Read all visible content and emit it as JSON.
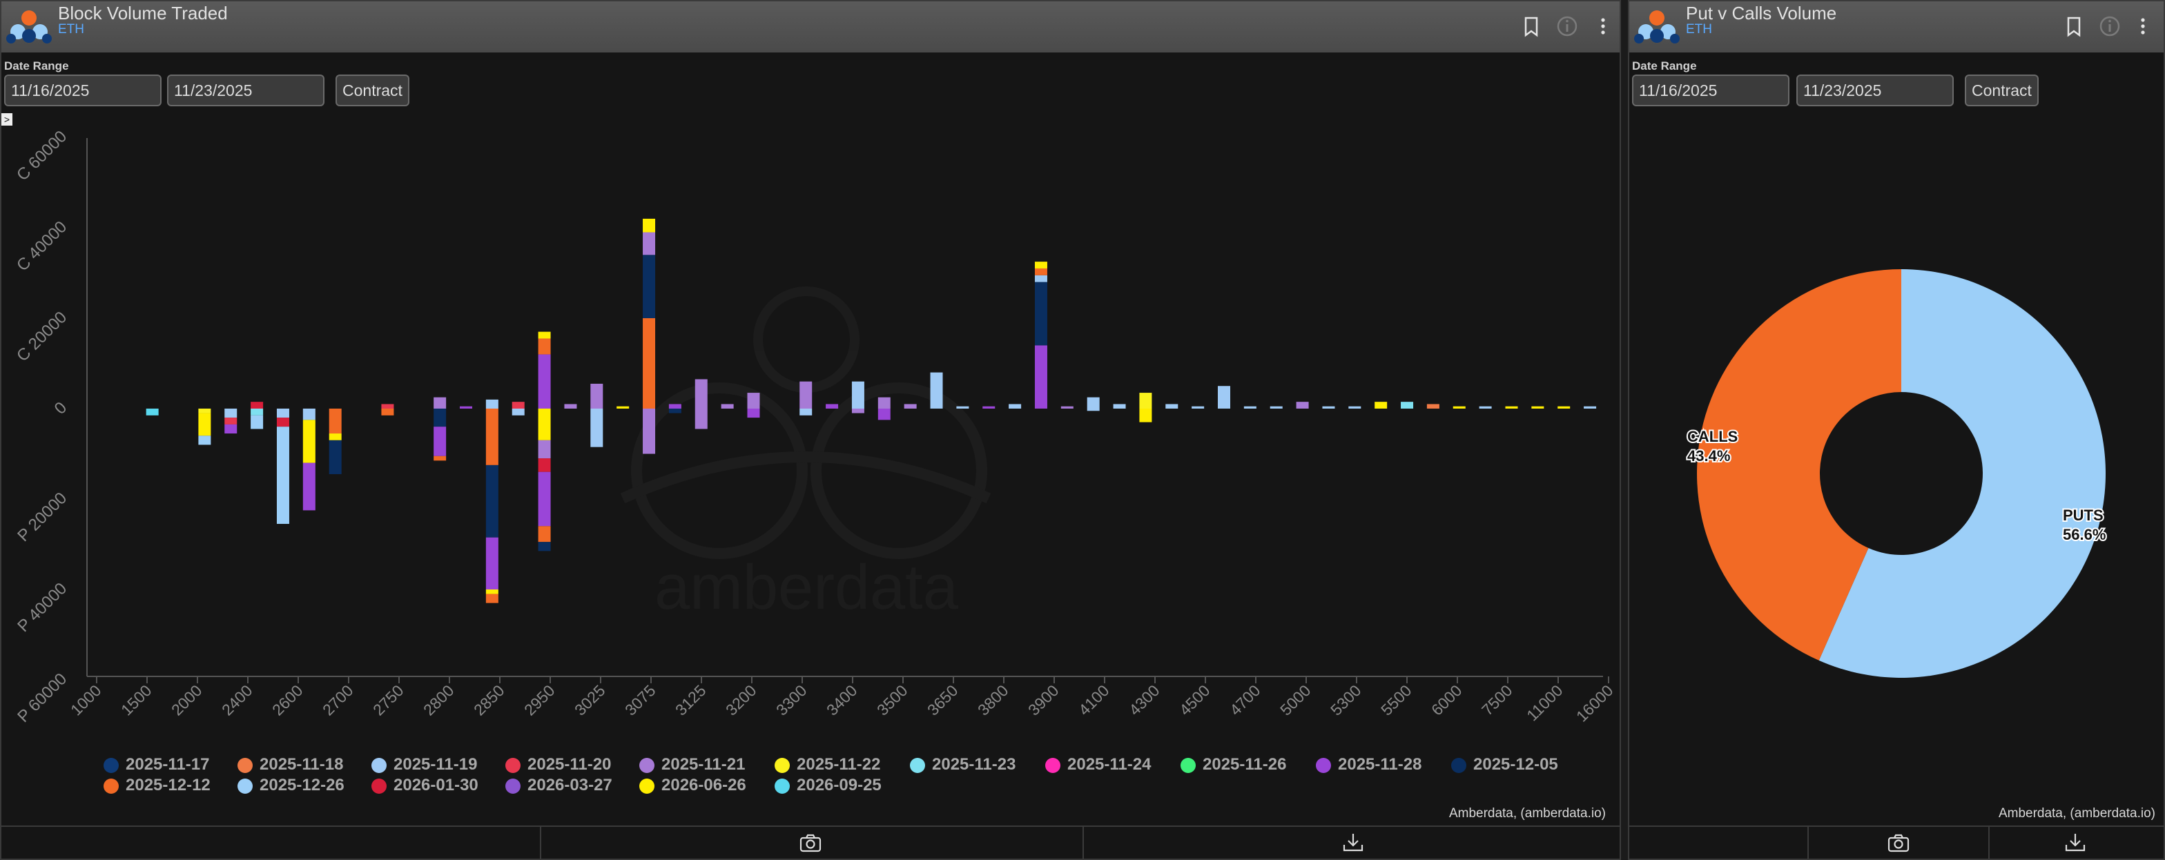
{
  "left_panel": {
    "title": "Block Volume Traded",
    "subtitle": "ETH",
    "date_range_label": "Date Range",
    "start_date": "11/16/2025",
    "end_date": "11/23/2025",
    "contract_button": "Contract",
    "collapse_glyph": ">",
    "credit": "Amberdata, (amberdata.io)",
    "watermark": "amberdata"
  },
  "right_panel": {
    "title": "Put v Calls Volume",
    "subtitle": "ETH",
    "date_range_label": "Date Range",
    "start_date": "11/16/2025",
    "end_date": "11/23/2025",
    "contract_button": "Contract",
    "credit": "Amberdata, (amberdata.io)"
  },
  "icons": {
    "bookmark": "bookmark-icon",
    "info": "info-icon",
    "menu": "kebab-menu-icon",
    "camera": "camera-icon",
    "download": "download-icon"
  },
  "chart_data": [
    {
      "type": "bar",
      "stacked": true,
      "title": "",
      "categories": [
        "1000",
        "1500",
        "2000",
        "2400",
        "2600",
        "2700",
        "2750",
        "2800",
        "2850",
        "2950",
        "3025",
        "3075",
        "3125",
        "3200",
        "3300",
        "3400",
        "3500",
        "3650",
        "3800",
        "3900",
        "4100",
        "4300",
        "4500",
        "4700",
        "5000",
        "5300",
        "5500",
        "6000",
        "7500",
        "11000",
        "16000"
      ],
      "y_ticks": [
        {
          "label": "C 60000",
          "value": 60000
        },
        {
          "label": "C 40000",
          "value": 40000
        },
        {
          "label": "C 20000",
          "value": 20000
        },
        {
          "label": "0",
          "value": 0
        },
        {
          "label": "P 20000",
          "value": -20000
        },
        {
          "label": "P 40000",
          "value": -40000
        },
        {
          "label": "P 60000",
          "value": -60000
        }
      ],
      "ylim": [
        -60000,
        60000
      ],
      "legend_position": "bottom",
      "series_legend": [
        {
          "name": "2025-11-17",
          "color": "#0f3b78"
        },
        {
          "name": "2025-11-18",
          "color": "#f07a45"
        },
        {
          "name": "2025-11-19",
          "color": "#9fcaf5"
        },
        {
          "name": "2025-11-20",
          "color": "#e8384f"
        },
        {
          "name": "2025-11-21",
          "color": "#a77ad6"
        },
        {
          "name": "2025-11-22",
          "color": "#fbf21c"
        },
        {
          "name": "2025-11-23",
          "color": "#7ee0f0"
        },
        {
          "name": "2025-11-24",
          "color": "#ff2bb4"
        },
        {
          "name": "2025-11-26",
          "color": "#3ef07a"
        },
        {
          "name": "2025-11-28",
          "color": "#9a45d8"
        },
        {
          "name": "2025-12-05",
          "color": "#0a2e60"
        },
        {
          "name": "2025-12-12",
          "color": "#f26a25"
        },
        {
          "name": "2025-12-26",
          "color": "#9ccff8"
        },
        {
          "name": "2026-01-30",
          "color": "#d81e3a"
        },
        {
          "name": "2026-03-27",
          "color": "#8b55d0"
        },
        {
          "name": "2026-06-26",
          "color": "#ffee00"
        },
        {
          "name": "2026-09-25",
          "color": "#5ad8ee"
        }
      ],
      "bars": [
        {
          "slot": 2,
          "segments": [
            {
              "series": "2026-09-25",
              "value": -1500
            }
          ]
        },
        {
          "slot": 4,
          "segments": [
            {
              "series": "2025-11-22",
              "value": -1000
            },
            {
              "series": "2026-06-26",
              "value": -5000
            },
            {
              "series": "2025-12-26",
              "value": -2000
            }
          ]
        },
        {
          "slot": 5,
          "segments": [
            {
              "series": "2025-11-19",
              "value": -2000
            },
            {
              "series": "2025-11-20",
              "value": -1500
            },
            {
              "series": "2025-11-28",
              "value": -2000
            }
          ]
        },
        {
          "slot": 6,
          "segments": [
            {
              "series": "2026-01-30",
              "value": 1500
            },
            {
              "series": "2025-11-23",
              "value": -1500
            },
            {
              "series": "2025-12-26",
              "value": -3000
            }
          ]
        },
        {
          "slot": 7,
          "segments": [
            {
              "series": "2025-11-19",
              "value": -2000
            },
            {
              "series": "2026-01-30",
              "value": -2000
            },
            {
              "series": "2025-12-26",
              "value": -21500
            }
          ]
        },
        {
          "slot": 8,
          "segments": [
            {
              "series": "2025-11-19",
              "value": -2500
            },
            {
              "series": "2026-06-26",
              "value": -9500
            },
            {
              "series": "2025-11-28",
              "value": -10500
            }
          ]
        },
        {
          "slot": 9,
          "segments": [
            {
              "series": "2025-12-12",
              "value": -5500
            },
            {
              "series": "2026-06-26",
              "value": -1500
            },
            {
              "series": "2025-12-05",
              "value": -7500
            }
          ]
        },
        {
          "slot": 11,
          "segments": [
            {
              "series": "2025-11-20",
              "value": 1000
            },
            {
              "series": "2025-12-12",
              "value": -1500
            }
          ]
        },
        {
          "slot": 13,
          "segments": [
            {
              "series": "2025-11-21",
              "value": 2500
            },
            {
              "series": "2025-12-05",
              "value": -4000
            },
            {
              "series": "2025-11-28",
              "value": -6500
            },
            {
              "series": "2025-12-12",
              "value": -1000
            }
          ]
        },
        {
          "slot": 14,
          "segments": [
            {
              "series": "2025-11-28",
              "value": 500
            }
          ]
        },
        {
          "slot": 15,
          "segments": [
            {
              "series": "2025-11-19",
              "value": 2000
            },
            {
              "series": "2025-12-12",
              "value": -12500
            },
            {
              "series": "2025-12-05",
              "value": -16000
            },
            {
              "series": "2025-11-28",
              "value": -11500
            },
            {
              "series": "2026-06-26",
              "value": -1000
            },
            {
              "series": "2025-12-12",
              "value": -2000
            }
          ]
        },
        {
          "slot": 16,
          "segments": [
            {
              "series": "2025-11-20",
              "value": 1500
            },
            {
              "series": "2025-11-19",
              "value": -1500
            }
          ]
        },
        {
          "slot": 17,
          "segments": [
            {
              "series": "2025-11-28",
              "value": 12000
            },
            {
              "series": "2025-12-12",
              "value": 3500
            },
            {
              "series": "2026-06-26",
              "value": 1500
            },
            {
              "series": "2026-06-26",
              "value": -7000
            },
            {
              "series": "2025-11-21",
              "value": -4000
            },
            {
              "series": "2026-01-30",
              "value": -3000
            },
            {
              "series": "2025-11-28",
              "value": -12000
            },
            {
              "series": "2025-12-12",
              "value": -3500
            },
            {
              "series": "2025-12-05",
              "value": -2000
            }
          ]
        },
        {
          "slot": 18,
          "segments": [
            {
              "series": "2025-11-21",
              "value": 1000
            }
          ]
        },
        {
          "slot": 19,
          "segments": [
            {
              "series": "2025-11-21",
              "value": 5500
            },
            {
              "series": "2025-11-19",
              "value": -8500
            }
          ]
        },
        {
          "slot": 20,
          "segments": [
            {
              "series": "2026-06-26",
              "value": 500
            }
          ]
        },
        {
          "slot": 21,
          "segments": [
            {
              "series": "2025-12-12",
              "value": 20000
            },
            {
              "series": "2025-12-05",
              "value": 14000
            },
            {
              "series": "2025-11-21",
              "value": 5000
            },
            {
              "series": "2026-06-26",
              "value": 3000
            },
            {
              "series": "2025-11-21",
              "value": -10000
            }
          ]
        },
        {
          "slot": 22,
          "segments": [
            {
              "series": "2025-11-28",
              "value": 1000
            },
            {
              "series": "2025-12-05",
              "value": -1000
            }
          ]
        },
        {
          "slot": 23,
          "segments": [
            {
              "series": "2025-11-21",
              "value": 6500
            },
            {
              "series": "2025-11-21",
              "value": -4500
            }
          ]
        },
        {
          "slot": 24,
          "segments": [
            {
              "series": "2025-11-21",
              "value": 1000
            }
          ]
        },
        {
          "slot": 25,
          "segments": [
            {
              "series": "2025-11-21",
              "value": 3500
            },
            {
              "series": "2025-11-28",
              "value": -2000
            }
          ]
        },
        {
          "slot": 27,
          "segments": [
            {
              "series": "2025-11-21",
              "value": 6000
            },
            {
              "series": "2025-11-19",
              "value": -1500
            }
          ]
        },
        {
          "slot": 28,
          "segments": [
            {
              "series": "2025-11-28",
              "value": 1000
            }
          ]
        },
        {
          "slot": 29,
          "segments": [
            {
              "series": "2025-11-19",
              "value": 6000
            },
            {
              "series": "2025-11-21",
              "value": -1000
            }
          ]
        },
        {
          "slot": 30,
          "segments": [
            {
              "series": "2025-11-21",
              "value": 2500
            },
            {
              "series": "2025-11-28",
              "value": -2500
            }
          ]
        },
        {
          "slot": 31,
          "segments": [
            {
              "series": "2025-11-21",
              "value": 1000
            }
          ]
        },
        {
          "slot": 32,
          "segments": [
            {
              "series": "2025-11-19",
              "value": 8000
            }
          ]
        },
        {
          "slot": 33,
          "segments": [
            {
              "series": "2025-11-19",
              "value": 500
            }
          ]
        },
        {
          "slot": 34,
          "segments": [
            {
              "series": "2025-11-28",
              "value": 500
            }
          ]
        },
        {
          "slot": 35,
          "segments": [
            {
              "series": "2025-11-19",
              "value": 1000
            }
          ]
        },
        {
          "slot": 36,
          "segments": [
            {
              "series": "2025-11-28",
              "value": 14000
            },
            {
              "series": "2025-12-05",
              "value": 14000
            },
            {
              "series": "2025-11-19",
              "value": 1500
            },
            {
              "series": "2025-12-12",
              "value": 1500
            },
            {
              "series": "2026-06-26",
              "value": 1500
            }
          ]
        },
        {
          "slot": 37,
          "segments": [
            {
              "series": "2025-11-21",
              "value": 500
            }
          ]
        },
        {
          "slot": 38,
          "segments": [
            {
              "series": "2025-11-19",
              "value": 2500
            },
            {
              "series": "2025-11-19",
              "value": -500
            }
          ]
        },
        {
          "slot": 39,
          "segments": [
            {
              "series": "2025-11-19",
              "value": 1000
            }
          ]
        },
        {
          "slot": 40,
          "segments": [
            {
              "series": "2025-11-22",
              "value": 3500
            },
            {
              "series": "2026-06-26",
              "value": -3000
            }
          ]
        },
        {
          "slot": 41,
          "segments": [
            {
              "series": "2025-11-19",
              "value": 1000
            }
          ]
        },
        {
          "slot": 42,
          "segments": [
            {
              "series": "2025-11-19",
              "value": 500
            }
          ]
        },
        {
          "slot": 43,
          "segments": [
            {
              "series": "2025-11-19",
              "value": 5000
            }
          ]
        },
        {
          "slot": 44,
          "segments": [
            {
              "series": "2025-11-19",
              "value": 500
            }
          ]
        },
        {
          "slot": 45,
          "segments": [
            {
              "series": "2025-11-19",
              "value": 500
            }
          ]
        },
        {
          "slot": 46,
          "segments": [
            {
              "series": "2025-11-21",
              "value": 1500
            }
          ]
        },
        {
          "slot": 47,
          "segments": [
            {
              "series": "2025-11-19",
              "value": 500
            }
          ]
        },
        {
          "slot": 48,
          "segments": [
            {
              "series": "2025-11-19",
              "value": 500
            }
          ]
        },
        {
          "slot": 49,
          "segments": [
            {
              "series": "2026-06-26",
              "value": 1500
            }
          ]
        },
        {
          "slot": 50,
          "segments": [
            {
              "series": "2025-11-23",
              "value": 1500
            }
          ]
        },
        {
          "slot": 51,
          "segments": [
            {
              "series": "2025-11-18",
              "value": 1000
            }
          ]
        },
        {
          "slot": 52,
          "segments": [
            {
              "series": "2026-06-26",
              "value": 500
            }
          ]
        },
        {
          "slot": 53,
          "segments": [
            {
              "series": "2025-11-19",
              "value": 500
            }
          ]
        },
        {
          "slot": 54,
          "segments": [
            {
              "series": "2026-06-26",
              "value": 500
            }
          ]
        },
        {
          "slot": 55,
          "segments": [
            {
              "series": "2026-06-26",
              "value": 500
            }
          ]
        },
        {
          "slot": 56,
          "segments": [
            {
              "series": "2026-06-26",
              "value": 500
            }
          ]
        },
        {
          "slot": 57,
          "segments": [
            {
              "series": "2025-11-19",
              "value": 500
            }
          ]
        }
      ]
    },
    {
      "type": "pie",
      "donut": true,
      "slices": [
        {
          "label": "CALLS",
          "percent_label": "43.4%",
          "value": 43.4,
          "color": "#f26a25"
        },
        {
          "label": "PUTS",
          "percent_label": "56.6%",
          "value": 56.6,
          "color": "#9ccff8"
        }
      ]
    }
  ]
}
